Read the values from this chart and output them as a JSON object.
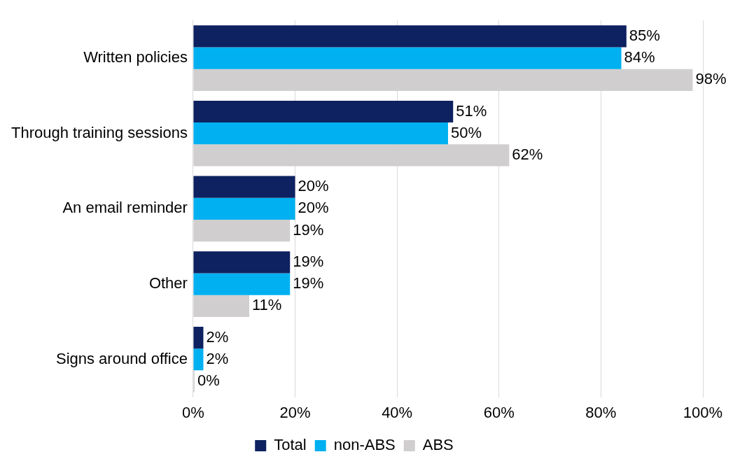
{
  "chart_data": {
    "type": "bar",
    "orientation": "horizontal",
    "categories": [
      "Written policies",
      "Through training sessions",
      "An email reminder",
      "Other",
      "Signs around office"
    ],
    "series": [
      {
        "name": "Total",
        "color": "#0e2160",
        "values": [
          85,
          51,
          20,
          19,
          2
        ],
        "value_labels": [
          "85%",
          "51%",
          "20%",
          "19%",
          "2%"
        ]
      },
      {
        "name": "non-ABS",
        "color": "#00b0f0",
        "values": [
          84,
          50,
          20,
          19,
          2
        ],
        "value_labels": [
          "84%",
          "50%",
          "20%",
          "19%",
          "2%"
        ]
      },
      {
        "name": "ABS",
        "color": "#d0cece",
        "values": [
          98,
          62,
          19,
          11,
          0
        ],
        "value_labels": [
          "98%",
          "62%",
          "19%",
          "11%",
          "0%"
        ]
      }
    ],
    "xlim": [
      0,
      100
    ],
    "xticks": [
      {
        "value": 0,
        "label": "0%"
      },
      {
        "value": 20,
        "label": "20%"
      },
      {
        "value": 40,
        "label": "40%"
      },
      {
        "value": 60,
        "label": "60%"
      },
      {
        "value": 80,
        "label": "80%"
      },
      {
        "value": 100,
        "label": "100%"
      }
    ],
    "grid": "x",
    "legend": "bottom"
  }
}
